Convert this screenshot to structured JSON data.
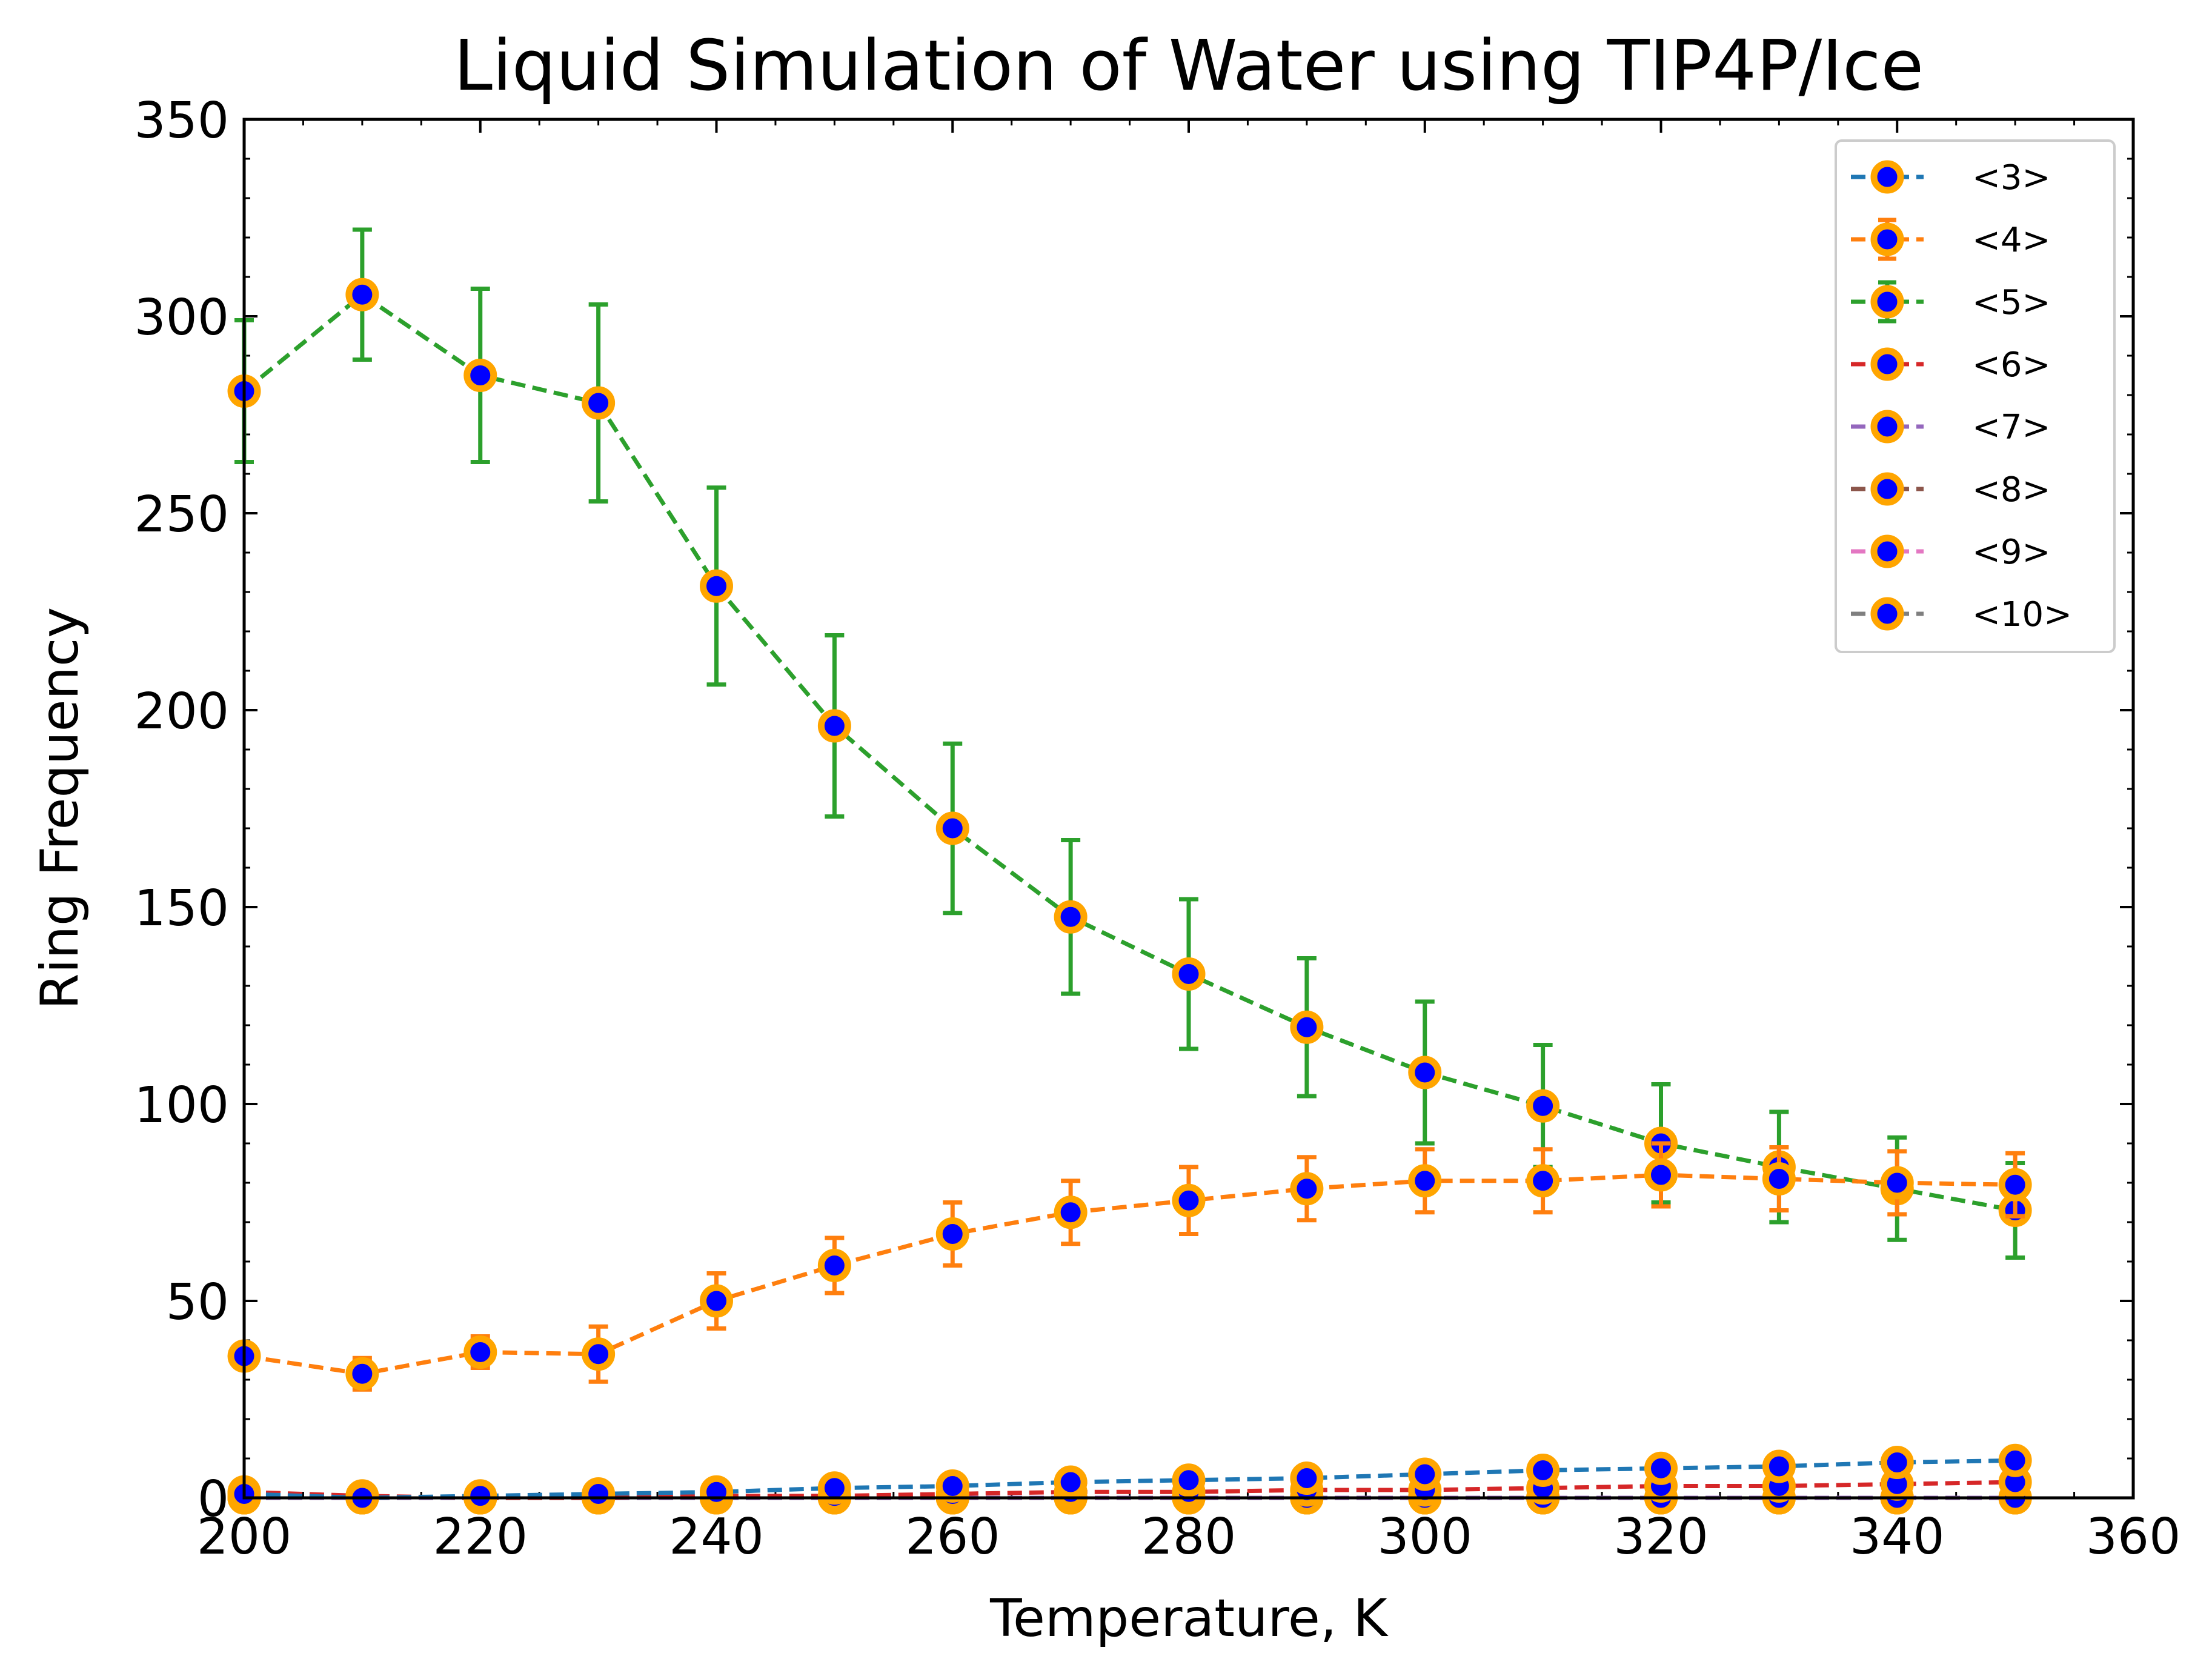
{
  "chart_data": {
    "type": "line",
    "title": "Liquid Simulation of Water using TIP4P/Ice",
    "xlabel": "Temperature, K",
    "ylabel": "Ring Frequency",
    "xlim": [
      200,
      360
    ],
    "ylim": [
      0,
      350
    ],
    "xticks": [
      200,
      220,
      240,
      260,
      280,
      300,
      320,
      340,
      360
    ],
    "yticks": [
      0,
      50,
      100,
      150,
      200,
      250,
      300,
      350
    ],
    "xtick_labels": [
      "200",
      "220",
      "240",
      "260",
      "280",
      "300",
      "320",
      "340",
      "360"
    ],
    "ytick_labels": [
      "0",
      "50",
      "100",
      "150",
      "200",
      "250",
      "300",
      "350"
    ],
    "grid": false,
    "legend_position": "top-right",
    "marker": {
      "face": "#0000ff",
      "edge": "#ffa500"
    },
    "x": [
      200,
      210,
      220,
      230,
      240,
      250,
      260,
      270,
      280,
      290,
      300,
      310,
      320,
      330,
      340,
      350
    ],
    "series": [
      {
        "name": "<3>",
        "color": "#1f77b4",
        "values": [
          1,
          0,
          0.5,
          1,
          1.5,
          2.5,
          3,
          4,
          4.5,
          5,
          6,
          7,
          7.5,
          8,
          9,
          9.5
        ],
        "errors": null
      },
      {
        "name": "<4>",
        "color": "#ff7f0e",
        "values": [
          36,
          31.5,
          37,
          36.5,
          50,
          59,
          67,
          72.5,
          75.5,
          78.5,
          80.5,
          80.5,
          82,
          81,
          80,
          79.5
        ],
        "errors": [
          2,
          4,
          4,
          7,
          7,
          7,
          8,
          8,
          8.5,
          8,
          8,
          8,
          8,
          8,
          8,
          8
        ]
      },
      {
        "name": "<5>",
        "color": "#2ca02c",
        "values": [
          281,
          305.5,
          285,
          278,
          231.5,
          196,
          170,
          147.5,
          133,
          119.5,
          108,
          99.5,
          90,
          84,
          78.5,
          73
        ],
        "errors": [
          18,
          16.5,
          22,
          25,
          25,
          23,
          21.5,
          19.5,
          19,
          17.5,
          18,
          15.5,
          15,
          14,
          13,
          12
        ]
      },
      {
        "name": "<6>",
        "color": "#d62728",
        "values": [
          1.5,
          0.5,
          0,
          0,
          0.5,
          0.5,
          1,
          1.5,
          1.5,
          2,
          2,
          2.5,
          3,
          3,
          3.5,
          4
        ],
        "errors": null
      },
      {
        "name": "<7>",
        "color": "#9467bd",
        "values": [
          0,
          0,
          0,
          0,
          0,
          0,
          0,
          0,
          0,
          0,
          0,
          0,
          0,
          0,
          0,
          0
        ],
        "errors": null
      },
      {
        "name": "<8>",
        "color": "#8c564b",
        "values": [
          0,
          0,
          0,
          0,
          0,
          0,
          0,
          0,
          0,
          0,
          0,
          0,
          0,
          0,
          0,
          0
        ],
        "errors": null
      },
      {
        "name": "<9>",
        "color": "#e377c2",
        "values": [
          0,
          0,
          0,
          0,
          0,
          0,
          0,
          0,
          0,
          0,
          0,
          0,
          0,
          0,
          0,
          0
        ],
        "errors": null
      },
      {
        "name": "<10>",
        "color": "#7f7f7f",
        "values": [
          0,
          0,
          0,
          0,
          0,
          0,
          0,
          0,
          0,
          0,
          0,
          0,
          0,
          0,
          0,
          0
        ],
        "errors": null
      }
    ]
  }
}
